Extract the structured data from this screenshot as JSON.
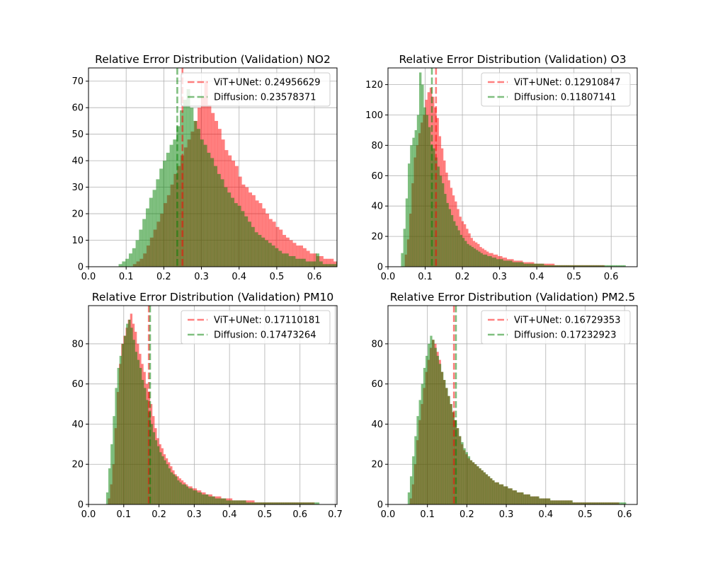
{
  "chart_data": [
    {
      "type": "bar",
      "title": "Relative Error Distribution (Validation) NO2",
      "xlabel": "",
      "ylabel": "",
      "xlim": [
        0.0,
        0.66
      ],
      "ylim": [
        0,
        75
      ],
      "xticks": [
        0.0,
        0.1,
        0.2,
        0.3,
        0.4,
        0.5,
        0.6
      ],
      "xtick_labels": [
        "0.0",
        "0.1",
        "0.2",
        "0.3",
        "0.4",
        "0.5",
        "0.6"
      ],
      "yticks": [
        0,
        10,
        20,
        30,
        40,
        50,
        60,
        70
      ],
      "ytick_labels": [
        "0",
        "10",
        "20",
        "30",
        "40",
        "50",
        "60",
        "70"
      ],
      "grid": true,
      "legend_position": "top-right",
      "histograms": [
        {
          "name": "ViT+UNet",
          "color": "#ff0000",
          "opacity": 0.5,
          "bin_start": 0.1,
          "bin_width": 0.00903,
          "counts": [
            0,
            0,
            1,
            2,
            3,
            5,
            8,
            11,
            14,
            17,
            20,
            24,
            27,
            31,
            35,
            38,
            42,
            45,
            48,
            51,
            55,
            60,
            64,
            70,
            61,
            58,
            55,
            52,
            48,
            44,
            42,
            40,
            38,
            34,
            31,
            30,
            28,
            27,
            25,
            24,
            22,
            20,
            18,
            17,
            15,
            14,
            12,
            11,
            10,
            9,
            8,
            8,
            7,
            6,
            5,
            5,
            4,
            4,
            3,
            3,
            3,
            2,
            2,
            2,
            2,
            1,
            1,
            1,
            1,
            1
          ]
        },
        {
          "name": "Diffusion",
          "color": "#008000",
          "opacity": 0.5,
          "bin_start": 0.08,
          "bin_width": 0.00903,
          "counts": [
            1,
            2,
            3,
            5,
            7,
            10,
            14,
            18,
            22,
            26,
            29,
            33,
            37,
            40,
            43,
            46,
            48,
            53,
            59,
            63,
            67,
            60,
            55,
            52,
            48,
            46,
            43,
            41,
            38,
            35,
            33,
            30,
            28,
            26,
            24,
            23,
            21,
            19,
            17,
            15,
            13,
            12,
            11,
            10,
            9,
            8,
            7,
            6,
            5,
            5,
            4,
            4,
            3,
            3,
            3,
            2,
            2,
            2,
            5,
            2,
            1,
            1,
            1,
            1,
            2,
            1,
            1,
            1,
            2
          ]
        }
      ],
      "vlines": [
        {
          "name": "ViT+UNet",
          "label": "ViT+UNet: 0.24956629",
          "value": 0.24956629,
          "color": "#ff0000",
          "opacity": 0.5
        },
        {
          "name": "Diffusion",
          "label": "Diffusion: 0.23578371",
          "value": 0.23578371,
          "color": "#008000",
          "opacity": 0.5
        }
      ]
    },
    {
      "type": "bar",
      "title": "Relative Error Distribution (Validation) O3",
      "xlabel": "",
      "ylabel": "",
      "xlim": [
        0.0,
        0.67
      ],
      "ylim": [
        0,
        131
      ],
      "xticks": [
        0.0,
        0.1,
        0.2,
        0.3,
        0.4,
        0.5,
        0.6
      ],
      "xtick_labels": [
        "0.0",
        "0.1",
        "0.2",
        "0.3",
        "0.4",
        "0.5",
        "0.6"
      ],
      "yticks": [
        0,
        20,
        40,
        60,
        80,
        100,
        120
      ],
      "ytick_labels": [
        "0",
        "20",
        "40",
        "60",
        "80",
        "100",
        "120"
      ],
      "grid": true,
      "legend_position": "top-right",
      "histograms": [
        {
          "name": "ViT+UNet",
          "color": "#ff0000",
          "opacity": 0.5,
          "bin_start": 0.045,
          "bin_width": 0.0061,
          "counts": [
            8,
            18,
            35,
            55,
            72,
            80,
            88,
            95,
            100,
            110,
            115,
            118,
            112,
            105,
            98,
            86,
            78,
            70,
            62,
            57,
            52,
            47,
            43,
            38,
            33,
            30,
            28,
            25,
            22,
            19,
            17,
            16,
            15,
            13,
            12,
            11,
            10,
            9,
            9,
            8,
            8,
            7,
            7,
            6,
            6,
            5,
            5,
            5,
            4,
            4,
            4,
            4,
            3,
            3,
            3,
            3,
            3,
            2,
            2,
            2,
            2,
            2,
            2,
            2,
            2,
            2,
            1,
            1,
            1,
            1,
            1,
            1,
            1,
            1,
            1,
            1,
            1,
            1,
            1,
            1,
            1,
            1,
            1,
            1,
            1,
            1,
            1,
            1
          ]
        },
        {
          "name": "Diffusion",
          "color": "#008000",
          "opacity": 0.5,
          "bin_start": 0.035,
          "bin_width": 0.0061,
          "counts": [
            9,
            25,
            45,
            68,
            80,
            85,
            90,
            100,
            128,
            120,
            105,
            100,
            92,
            80,
            78,
            72,
            66,
            60,
            55,
            48,
            42,
            38,
            34,
            30,
            27,
            24,
            21,
            19,
            17,
            15,
            14,
            13,
            12,
            11,
            10,
            9,
            8,
            8,
            7,
            7,
            6,
            6,
            5,
            5,
            5,
            4,
            4,
            4,
            4,
            3,
            3,
            3,
            3,
            3,
            2,
            2,
            2,
            2,
            2,
            2,
            2,
            2,
            2,
            1,
            1,
            1,
            1,
            1,
            1,
            1,
            1,
            1,
            1,
            1,
            1,
            1,
            1,
            1,
            1,
            1,
            1,
            1,
            1,
            1,
            1,
            1,
            1,
            1,
            1,
            1,
            1,
            1,
            1,
            1,
            1,
            1,
            1,
            1,
            1
          ]
        }
      ],
      "vlines": [
        {
          "name": "ViT+UNet",
          "label": "ViT+UNet: 0.12910847",
          "value": 0.12910847,
          "color": "#ff0000",
          "opacity": 0.5
        },
        {
          "name": "Diffusion",
          "label": "Diffusion: 0.11807141",
          "value": 0.11807141,
          "color": "#008000",
          "opacity": 0.5
        }
      ]
    },
    {
      "type": "bar",
      "title": "Relative Error Distribution (Validation) PM10",
      "xlabel": "",
      "ylabel": "",
      "xlim": [
        0.0,
        0.705
      ],
      "ylim": [
        0,
        99
      ],
      "xticks": [
        0.0,
        0.1,
        0.2,
        0.3,
        0.4,
        0.5,
        0.6,
        0.7
      ],
      "xtick_labels": [
        "0.0",
        "0.1",
        "0.2",
        "0.3",
        "0.4",
        "0.5",
        "0.6",
        "0.7"
      ],
      "yticks": [
        0,
        20,
        40,
        60,
        80
      ],
      "ytick_labels": [
        "0",
        "20",
        "40",
        "60",
        "80"
      ],
      "grid": true,
      "legend_position": "top-right",
      "histograms": [
        {
          "name": "ViT+UNet",
          "color": "#ff0000",
          "opacity": 0.5,
          "bin_start": 0.055,
          "bin_width": 0.0063,
          "counts": [
            3,
            10,
            20,
            38,
            56,
            70,
            80,
            84,
            88,
            92,
            95,
            90,
            86,
            80,
            75,
            70,
            66,
            60,
            56,
            50,
            44,
            38,
            33,
            30,
            28,
            25,
            23,
            21,
            19,
            17,
            15,
            14,
            13,
            12,
            11,
            10,
            9,
            9,
            8,
            8,
            7,
            7,
            6,
            6,
            5,
            5,
            5,
            4,
            4,
            4,
            4,
            3,
            3,
            3,
            3,
            3,
            2,
            2,
            2,
            2,
            2,
            2,
            2,
            2,
            2,
            2,
            1,
            1,
            1,
            1,
            1,
            1,
            1,
            1,
            1,
            1,
            1,
            1,
            1,
            1,
            1,
            1,
            1,
            1,
            1,
            1,
            1,
            1,
            1,
            1,
            1,
            1,
            1
          ]
        },
        {
          "name": "Diffusion",
          "color": "#008000",
          "opacity": 0.5,
          "bin_start": 0.05,
          "bin_width": 0.0063,
          "counts": [
            6,
            18,
            30,
            44,
            58,
            68,
            74,
            80,
            84,
            90,
            92,
            88,
            82,
            76,
            72,
            68,
            62,
            58,
            52,
            46,
            40,
            36,
            32,
            29,
            26,
            24,
            22,
            20,
            18,
            16,
            15,
            14,
            12,
            11,
            10,
            10,
            9,
            8,
            8,
            7,
            7,
            6,
            6,
            5,
            5,
            5,
            4,
            4,
            4,
            3,
            3,
            3,
            3,
            3,
            2,
            2,
            2,
            2,
            2,
            2,
            2,
            2,
            2,
            1,
            1,
            1,
            1,
            1,
            1,
            1,
            1,
            1,
            1,
            1,
            1,
            1,
            1,
            1,
            1,
            1,
            1,
            1,
            1,
            1,
            1,
            1,
            1,
            1,
            1,
            1,
            1,
            1,
            1,
            1,
            1,
            1
          ]
        }
      ],
      "vlines": [
        {
          "name": "ViT+UNet",
          "label": "ViT+UNet: 0.17110181",
          "value": 0.17110181,
          "color": "#ff0000",
          "opacity": 0.5
        },
        {
          "name": "Diffusion",
          "label": "Diffusion: 0.17473264",
          "value": 0.17473264,
          "color": "#008000",
          "opacity": 0.5
        }
      ]
    },
    {
      "type": "bar",
      "title": "Relative Error Distribution (Validation) PM2.5",
      "xlabel": "",
      "ylabel": "",
      "xlim": [
        0.0,
        0.632
      ],
      "ylim": [
        0,
        99
      ],
      "xticks": [
        0.0,
        0.1,
        0.2,
        0.3,
        0.4,
        0.5,
        0.6
      ],
      "xtick_labels": [
        "0.0",
        "0.1",
        "0.2",
        "0.3",
        "0.4",
        "0.5",
        "0.6"
      ],
      "yticks": [
        0,
        20,
        40,
        60,
        80
      ],
      "ytick_labels": [
        "0",
        "20",
        "40",
        "60",
        "80"
      ],
      "grid": true,
      "legend_position": "top-right",
      "histograms": [
        {
          "name": "ViT+UNet",
          "color": "#ff0000",
          "opacity": 0.5,
          "bin_start": 0.055,
          "bin_width": 0.00565,
          "counts": [
            3,
            10,
            20,
            32,
            42,
            50,
            58,
            66,
            72,
            78,
            82,
            80,
            76,
            72,
            66,
            62,
            58,
            54,
            50,
            46,
            42,
            38,
            34,
            30,
            27,
            25,
            23,
            22,
            21,
            20,
            19,
            18,
            17,
            16,
            15,
            14,
            13,
            12,
            11,
            11,
            10,
            10,
            9,
            9,
            8,
            8,
            7,
            7,
            6,
            6,
            6,
            5,
            5,
            5,
            4,
            4,
            4,
            4,
            3,
            3,
            3,
            3,
            3,
            2,
            2,
            2,
            2,
            2,
            2,
            2,
            2,
            2,
            2,
            1,
            1,
            1,
            1,
            1,
            1,
            1,
            1,
            1,
            1,
            1,
            1,
            1,
            1,
            1,
            1,
            1,
            1,
            1,
            1,
            1
          ]
        },
        {
          "name": "Diffusion",
          "color": "#008000",
          "opacity": 0.5,
          "bin_start": 0.05,
          "bin_width": 0.00565,
          "counts": [
            6,
            14,
            24,
            34,
            44,
            52,
            60,
            68,
            74,
            80,
            84,
            82,
            78,
            74,
            70,
            66,
            62,
            58,
            54,
            50,
            46,
            42,
            38,
            34,
            31,
            28,
            26,
            24,
            22,
            21,
            20,
            19,
            18,
            17,
            16,
            15,
            14,
            13,
            12,
            11,
            11,
            10,
            10,
            9,
            9,
            8,
            8,
            7,
            7,
            6,
            6,
            6,
            5,
            5,
            5,
            4,
            4,
            4,
            4,
            3,
            3,
            3,
            3,
            3,
            2,
            2,
            2,
            2,
            2,
            2,
            2,
            2,
            2,
            2,
            1,
            1,
            1,
            1,
            1,
            1,
            1,
            1,
            1,
            1,
            1,
            1,
            1,
            1,
            1,
            1,
            1,
            1,
            1,
            1,
            1,
            1,
            1,
            1
          ]
        }
      ],
      "vlines": [
        {
          "name": "ViT+UNet",
          "label": "ViT+UNet: 0.16729353",
          "value": 0.16729353,
          "color": "#ff0000",
          "opacity": 0.5
        },
        {
          "name": "Diffusion",
          "label": "Diffusion: 0.17232923",
          "value": 0.17232923,
          "color": "#008000",
          "opacity": 0.5
        }
      ]
    }
  ]
}
